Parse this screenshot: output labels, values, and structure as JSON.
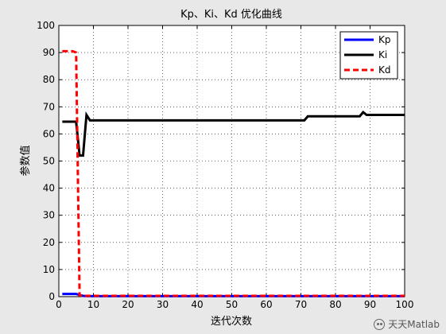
{
  "chart_data": {
    "type": "line",
    "title": "Kp、Ki、Kd 优化曲线",
    "xlabel": "迭代次数",
    "ylabel": "参数值",
    "xlim": [
      0,
      100
    ],
    "ylim": [
      0,
      100
    ],
    "xticks": [
      0,
      10,
      20,
      30,
      40,
      50,
      60,
      70,
      80,
      90,
      100
    ],
    "yticks": [
      0,
      10,
      20,
      30,
      40,
      50,
      60,
      70,
      80,
      90,
      100
    ],
    "grid": true,
    "legend_position": "top-right",
    "series": [
      {
        "name": "Kp",
        "color": "#0000ff",
        "style": "solid",
        "x": [
          1,
          2,
          3,
          4,
          5,
          6,
          7,
          8,
          9,
          10,
          20,
          30,
          40,
          50,
          60,
          70,
          80,
          90,
          100
        ],
        "y": [
          1.0,
          1.0,
          1.0,
          1.0,
          1.0,
          0.6,
          0.3,
          0.2,
          0.2,
          0.2,
          0.2,
          0.2,
          0.2,
          0.2,
          0.2,
          0.2,
          0.2,
          0.2,
          0.2
        ]
      },
      {
        "name": "Ki",
        "color": "#000000",
        "style": "solid",
        "x": [
          1,
          2,
          3,
          4,
          5,
          6,
          7,
          8,
          9,
          10,
          20,
          30,
          40,
          50,
          60,
          70,
          71,
          72,
          80,
          87,
          88,
          89,
          90,
          100
        ],
        "y": [
          64.5,
          64.5,
          64.5,
          64.5,
          64.5,
          52,
          52,
          67,
          65,
          65,
          65,
          65,
          65,
          65,
          65,
          65,
          65,
          66.5,
          66.5,
          66.5,
          68,
          67,
          67,
          67
        ]
      },
      {
        "name": "Kd",
        "color": "#ff0000",
        "style": "dashed",
        "x": [
          1,
          2,
          3,
          4,
          5,
          6,
          7,
          8,
          9,
          10,
          20,
          30,
          40,
          50,
          60,
          70,
          80,
          90,
          100
        ],
        "y": [
          90.5,
          90.5,
          90.5,
          90.5,
          90,
          0.5,
          0.3,
          0.3,
          0.3,
          0.3,
          0.3,
          0.3,
          0.3,
          0.3,
          0.3,
          0.3,
          0.3,
          0.3,
          0.3
        ]
      }
    ]
  },
  "watermark": {
    "text": "天天Matlab",
    "icon": "wechat-icon"
  }
}
